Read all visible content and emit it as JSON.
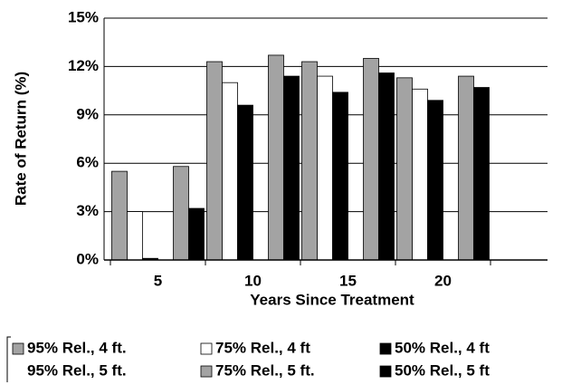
{
  "chart_data": {
    "type": "bar",
    "y_label": "Rate of Return (%)",
    "x_label": "Years Since Treatment",
    "categories": [
      "5",
      "10",
      "15",
      "20"
    ],
    "series": [
      {
        "name": "95% Rel., 4 ft.",
        "color": "#a3a3a3",
        "values": [
          5.5,
          12.3,
          12.3,
          11.3
        ]
      },
      {
        "name": "75% Rel., 4 ft",
        "color": "#ffffff",
        "values": [
          3.0,
          11.0,
          11.4,
          10.6
        ]
      },
      {
        "name": "50% Rel., 4 ft",
        "color": "#000000",
        "values": [
          0.1,
          9.6,
          10.4,
          9.9
        ]
      },
      {
        "name": "95% Rel., 5 ft.",
        "color": "none",
        "values": [
          null,
          null,
          null,
          null
        ]
      },
      {
        "name": "75% Rel., 5 ft.",
        "color": "#a3a3a3",
        "values": [
          5.8,
          12.7,
          12.5,
          11.4
        ]
      },
      {
        "name": "50% Rel., 5 ft",
        "color": "#000000",
        "values": [
          3.2,
          11.4,
          11.6,
          10.7
        ]
      }
    ],
    "ylim": [
      0,
      15
    ],
    "yticks": [
      {
        "value": 0,
        "label": "0%"
      },
      {
        "value": 3,
        "label": "3%"
      },
      {
        "value": 6,
        "label": "6%"
      },
      {
        "value": 9,
        "label": "9%"
      },
      {
        "value": 12,
        "label": "12%"
      },
      {
        "value": 15,
        "label": "15%"
      }
    ],
    "grid": true
  }
}
